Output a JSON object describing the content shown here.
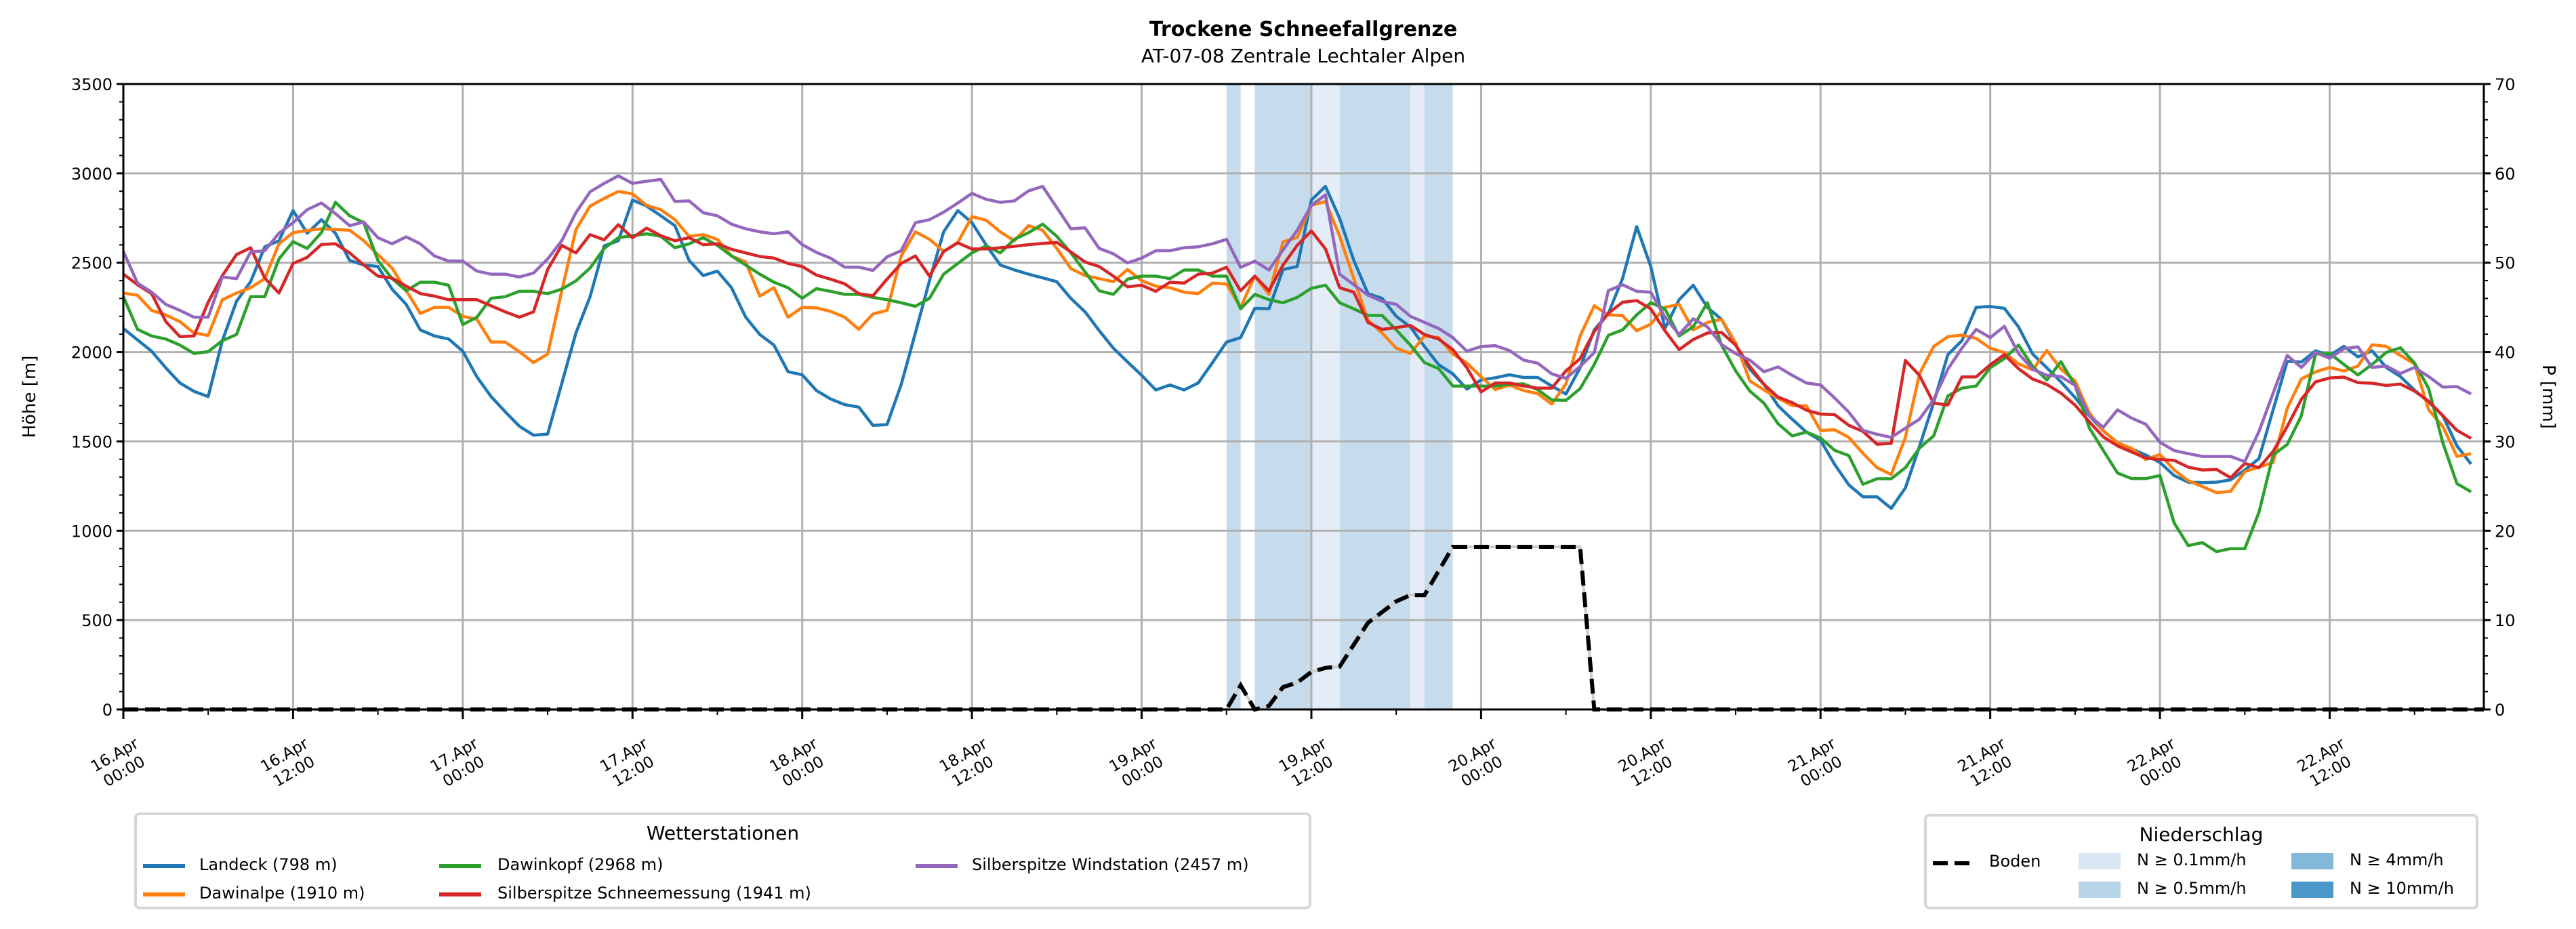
{
  "chart_data": {
    "type": "line",
    "title": "Trockene Schneefallgrenze",
    "subtitle": "AT-07-08 Zentrale Lechtaler Alpen",
    "ylabel": "Höhe [m]",
    "ylabel_right": "P [mm]",
    "ylim": [
      0,
      3500
    ],
    "ylim_right": [
      0,
      70
    ],
    "yticks": [
      "0",
      "500",
      "1000",
      "1500",
      "2000",
      "2500",
      "3000",
      "3500"
    ],
    "yticks_right": [
      "0",
      "10",
      "20",
      "30",
      "40",
      "50",
      "60",
      "70"
    ],
    "x_start": "16.Apr 00:00",
    "x_step_hours": 1,
    "xlim_hours": [
      0,
      166.9
    ],
    "xticks": [
      [
        "16.Apr",
        "00:00"
      ],
      [
        "16.Apr",
        "12:00"
      ],
      [
        "17.Apr",
        "00:00"
      ],
      [
        "17.Apr",
        "12:00"
      ],
      [
        "18.Apr",
        "00:00"
      ],
      [
        "18.Apr",
        "12:00"
      ],
      [
        "19.Apr",
        "00:00"
      ],
      [
        "19.Apr",
        "12:00"
      ],
      [
        "20.Apr",
        "00:00"
      ],
      [
        "20.Apr",
        "12:00"
      ],
      [
        "21.Apr",
        "00:00"
      ],
      [
        "21.Apr",
        "12:00"
      ],
      [
        "22.Apr",
        "00:00"
      ],
      [
        "22.Apr",
        "12:00"
      ]
    ],
    "grid": true,
    "legend_stations": {
      "title": "Wetterstationen",
      "placement": "bottom-left"
    },
    "legend_precip": {
      "title": "Niederschlag",
      "placement": "bottom-right",
      "boden_label": "Boden",
      "levels": [
        {
          "label": "N ≥ 0.1mm/h",
          "color": "#d9e7f5",
          "plot_color": "#e4edf7"
        },
        {
          "label": "N ≥ 0.5mm/h",
          "color": "#b9d5ea",
          "plot_color": "#c6dcec"
        },
        {
          "label": "N ≥ 4mm/h",
          "color": "#84b8db",
          "plot_color": "#84b8db"
        },
        {
          "label": "N ≥ 10mm/h",
          "color": "#4a98c9",
          "plot_color": "#4a98c9"
        }
      ]
    },
    "precip_bands": [
      {
        "start": 78,
        "end": 79,
        "level": 1
      },
      {
        "start": 80,
        "end": 84,
        "level": 1
      },
      {
        "start": 84,
        "end": 86,
        "level": 0
      },
      {
        "start": 86,
        "end": 91,
        "level": 1
      },
      {
        "start": 91,
        "end": 92,
        "level": 0
      },
      {
        "start": 92,
        "end": 94,
        "level": 1
      }
    ],
    "boden": {
      "name": "Boden",
      "axis": "right",
      "points": [
        [
          0,
          0
        ],
        [
          78,
          0
        ],
        [
          79,
          2.7
        ],
        [
          80,
          0
        ],
        [
          81,
          0.4
        ],
        [
          82,
          2.5
        ],
        [
          83,
          3.0
        ],
        [
          84,
          4.2
        ],
        [
          85,
          4.65
        ],
        [
          86,
          4.8
        ],
        [
          88,
          9.7
        ],
        [
          89,
          10.9
        ],
        [
          90,
          12.1
        ],
        [
          91,
          12.8
        ],
        [
          92,
          12.8
        ],
        [
          94,
          18.2
        ],
        [
          103,
          18.2
        ],
        [
          104,
          0
        ],
        [
          166.9,
          0
        ]
      ]
    },
    "series": [
      {
        "name": "Landeck (798 m)",
        "color": "#1f77b4",
        "values": [
          2132,
          2068,
          2005,
          1912,
          1827,
          1780,
          1751,
          2064,
          2284,
          2394,
          2589,
          2623,
          2792,
          2665,
          2741,
          2665,
          2513,
          2487,
          2479,
          2352,
          2267,
          2124,
          2090,
          2073,
          2005,
          1861,
          1751,
          1666,
          1585,
          1535,
          1541,
          1824,
          2107,
          2310,
          2594,
          2623,
          2851,
          2817,
          2763,
          2707,
          2513,
          2428,
          2453,
          2360,
          2196,
          2098,
          2039,
          1890,
          1873,
          1785,
          1738,
          1706,
          1692,
          1590,
          1594,
          1819,
          2107,
          2400,
          2673,
          2792,
          2724,
          2600,
          2487,
          2460,
          2436,
          2415,
          2394,
          2300,
          2225,
          2120,
          2022,
          1945,
          1870,
          1788,
          1816,
          1788,
          1827,
          1940,
          2056,
          2081,
          2245,
          2242,
          2462,
          2479,
          2851,
          2927,
          2748,
          2513,
          2327,
          2301,
          2200,
          2141,
          2031,
          1929,
          1878,
          1793,
          1844,
          1856,
          1873,
          1858,
          1858,
          1810,
          1765,
          1912,
          2124,
          2217,
          2411,
          2702,
          2479,
          2132,
          2293,
          2374,
          2250,
          2183,
          2039,
          1904,
          1819,
          1700,
          1624,
          1552,
          1506,
          1371,
          1257,
          1190,
          1190,
          1125,
          1240,
          1472,
          1717,
          1985,
          2064,
          2250,
          2255,
          2245,
          2141,
          1989,
          1912,
          1833,
          1745,
          1644,
          1559,
          1492,
          1458,
          1424,
          1382,
          1309,
          1272,
          1269,
          1272,
          1285,
          1340,
          1404,
          1677,
          1948,
          1944,
          2007,
          1981,
          2032,
          1973,
          2007,
          1914,
          1863,
          1787,
          1720,
          1644,
          1475,
          1373
        ]
      },
      {
        "name": "Dawinalpe (1910 m)",
        "color": "#ff7f0e",
        "values": [
          2330,
          2318,
          2233,
          2208,
          2170,
          2107,
          2093,
          2293,
          2330,
          2360,
          2411,
          2606,
          2668,
          2680,
          2690,
          2686,
          2682,
          2623,
          2546,
          2470,
          2343,
          2216,
          2250,
          2250,
          2200,
          2183,
          2056,
          2056,
          2002,
          1941,
          1989,
          2343,
          2685,
          2817,
          2860,
          2899,
          2885,
          2821,
          2797,
          2741,
          2648,
          2657,
          2631,
          2538,
          2504,
          2313,
          2360,
          2195,
          2250,
          2247,
          2228,
          2195,
          2127,
          2213,
          2233,
          2538,
          2673,
          2631,
          2563,
          2614,
          2758,
          2738,
          2673,
          2623,
          2707,
          2682,
          2580,
          2467,
          2428,
          2411,
          2394,
          2462,
          2399,
          2369,
          2360,
          2335,
          2327,
          2386,
          2381,
          2250,
          2425,
          2323,
          2617,
          2642,
          2821,
          2843,
          2648,
          2411,
          2178,
          2107,
          2022,
          1992,
          2090,
          2081,
          1989,
          1938,
          1862,
          1790,
          1816,
          1785,
          1768,
          1709,
          1822,
          2090,
          2259,
          2208,
          2204,
          2119,
          2157,
          2250,
          2267,
          2124,
          2166,
          2183,
          2052,
          1839,
          1788,
          1742,
          1700,
          1700,
          1561,
          1565,
          1523,
          1433,
          1353,
          1315,
          1523,
          1878,
          2031,
          2086,
          2095,
          2077,
          2022,
          1997,
          1934,
          1900,
          2009,
          1905,
          1838,
          1660,
          1559,
          1492,
          1461,
          1399,
          1427,
          1340,
          1280,
          1247,
          1213,
          1221,
          1331,
          1356,
          1382,
          1686,
          1850,
          1889,
          1914,
          1894,
          1922,
          2041,
          2032,
          1981,
          1934,
          1677,
          1584,
          1416,
          1432
        ]
      },
      {
        "name": "Dawinkopf (2968 m)",
        "color": "#2ca02c",
        "values": [
          2310,
          2127,
          2090,
          2073,
          2039,
          1992,
          2002,
          2064,
          2098,
          2310,
          2310,
          2521,
          2618,
          2580,
          2668,
          2838,
          2763,
          2724,
          2513,
          2411,
          2343,
          2391,
          2391,
          2374,
          2154,
          2195,
          2301,
          2310,
          2340,
          2340,
          2327,
          2352,
          2398,
          2470,
          2580,
          2640,
          2651,
          2662,
          2648,
          2584,
          2606,
          2640,
          2597,
          2538,
          2487,
          2436,
          2391,
          2360,
          2301,
          2355,
          2340,
          2323,
          2323,
          2306,
          2293,
          2276,
          2256,
          2301,
          2436,
          2496,
          2555,
          2594,
          2555,
          2631,
          2668,
          2716,
          2648,
          2555,
          2448,
          2343,
          2323,
          2408,
          2425,
          2425,
          2411,
          2459,
          2459,
          2425,
          2425,
          2242,
          2323,
          2293,
          2276,
          2306,
          2357,
          2374,
          2276,
          2242,
          2205,
          2205,
          2124,
          2039,
          1941,
          1907,
          1810,
          1810,
          1810,
          1810,
          1819,
          1822,
          1790,
          1732,
          1730,
          1795,
          1930,
          2094,
          2124,
          2208,
          2276,
          2242,
          2090,
          2141,
          2276,
          2039,
          1895,
          1782,
          1714,
          1599,
          1531,
          1552,
          1519,
          1450,
          1421,
          1260,
          1291,
          1291,
          1353,
          1463,
          1531,
          1754,
          1798,
          1810,
          1912,
          1963,
          2039,
          1920,
          1844,
          1946,
          1813,
          1576,
          1449,
          1323,
          1292,
          1292,
          1309,
          1044,
          917,
          934,
          883,
          900,
          900,
          1103,
          1424,
          1483,
          1644,
          1990,
          1993,
          1931,
          1872,
          1931,
          1998,
          2024,
          1939,
          1796,
          1492,
          1264,
          1218
        ]
      },
      {
        "name": "Silberspitze Schneemessung (1941 m)",
        "color": "#d62728",
        "values": [
          2436,
          2377,
          2327,
          2171,
          2086,
          2090,
          2279,
          2428,
          2546,
          2584,
          2414,
          2330,
          2496,
          2530,
          2602,
          2606,
          2555,
          2487,
          2425,
          2414,
          2369,
          2327,
          2313,
          2293,
          2293,
          2293,
          2259,
          2225,
          2195,
          2225,
          2462,
          2597,
          2555,
          2657,
          2628,
          2713,
          2640,
          2694,
          2651,
          2623,
          2640,
          2601,
          2606,
          2575,
          2555,
          2535,
          2526,
          2496,
          2479,
          2431,
          2408,
          2382,
          2327,
          2315,
          2408,
          2496,
          2538,
          2425,
          2563,
          2611,
          2577,
          2577,
          2584,
          2592,
          2601,
          2608,
          2614,
          2560,
          2504,
          2479,
          2425,
          2365,
          2374,
          2340,
          2391,
          2386,
          2436,
          2442,
          2475,
          2343,
          2425,
          2343,
          2487,
          2597,
          2678,
          2577,
          2360,
          2335,
          2166,
          2127,
          2137,
          2149,
          2098,
          2073,
          2014,
          1912,
          1777,
          1827,
          1827,
          1810,
          1798,
          1798,
          1895,
          1963,
          2115,
          2217,
          2279,
          2288,
          2242,
          2119,
          2014,
          2070,
          2107,
          2110,
          2039,
          1920,
          1819,
          1748,
          1717,
          1675,
          1653,
          1650,
          1590,
          1556,
          1484,
          1489,
          1953,
          1869,
          1714,
          1704,
          1861,
          1861,
          1929,
          1985,
          1907,
          1849,
          1819,
          1770,
          1703,
          1610,
          1525,
          1475,
          1441,
          1407,
          1399,
          1394,
          1356,
          1340,
          1343,
          1297,
          1377,
          1353,
          1444,
          1584,
          1736,
          1833,
          1855,
          1860,
          1829,
          1826,
          1813,
          1821,
          1782,
          1725,
          1644,
          1562,
          1517
        ]
      },
      {
        "name": "Silberspitze Windstation (2457 m)",
        "color": "#9467bd",
        "values": [
          2563,
          2386,
          2335,
          2267,
          2233,
          2195,
          2195,
          2420,
          2411,
          2560,
          2567,
          2665,
          2724,
          2797,
          2834,
          2775,
          2707,
          2728,
          2640,
          2606,
          2645,
          2606,
          2538,
          2509,
          2509,
          2453,
          2436,
          2436,
          2420,
          2442,
          2521,
          2623,
          2780,
          2897,
          2944,
          2986,
          2944,
          2956,
          2966,
          2843,
          2846,
          2780,
          2763,
          2716,
          2690,
          2673,
          2662,
          2673,
          2601,
          2558,
          2526,
          2475,
          2475,
          2457,
          2533,
          2567,
          2724,
          2741,
          2783,
          2834,
          2888,
          2855,
          2838,
          2846,
          2902,
          2927,
          2809,
          2690,
          2695,
          2580,
          2550,
          2499,
          2526,
          2567,
          2567,
          2584,
          2589,
          2606,
          2631,
          2474,
          2509,
          2459,
          2572,
          2682,
          2821,
          2880,
          2436,
          2377,
          2318,
          2284,
          2267,
          2200,
          2166,
          2132,
          2081,
          2005,
          2031,
          2036,
          2009,
          1955,
          1938,
          1878,
          1853,
          1920,
          1997,
          2344,
          2377,
          2340,
          2335,
          2195,
          2098,
          2186,
          2141,
          2042,
          1992,
          1955,
          1890,
          1917,
          1870,
          1827,
          1816,
          1743,
          1664,
          1562,
          1540,
          1523,
          1574,
          1624,
          1734,
          1904,
          2022,
          2127,
          2081,
          2144,
          1992,
          1904,
          1870,
          1863,
          1813,
          1644,
          1579,
          1677,
          1630,
          1596,
          1495,
          1449,
          1432,
          1416,
          1416,
          1416,
          1387,
          1556,
          1770,
          1981,
          1914,
          1998,
          1965,
          2019,
          2029,
          1914,
          1922,
          1880,
          1914,
          1863,
          1804,
          1807,
          1765
        ]
      }
    ]
  }
}
